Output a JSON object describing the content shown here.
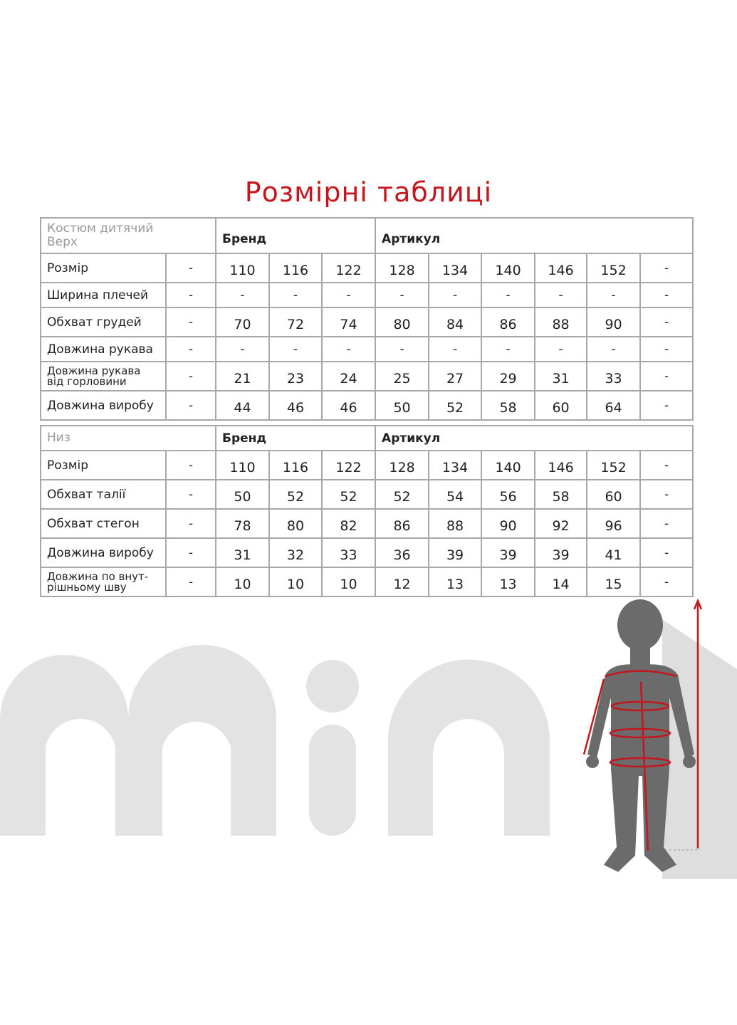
{
  "title": "Розмірні таблиці",
  "tables": [
    {
      "name_line1": "Костюм дитячий",
      "name_line2": "Верх",
      "brand_label": "Бренд",
      "article_label": "Артикул",
      "rows": [
        {
          "label": "Розмір",
          "values": [
            "-",
            "110",
            "116",
            "122",
            "128",
            "134",
            "140",
            "146",
            "152",
            "-"
          ]
        },
        {
          "label": "Ширина плечей",
          "values": [
            "-",
            "-",
            "-",
            "-",
            "-",
            "-",
            "-",
            "-",
            "-",
            "-"
          ]
        },
        {
          "label": "Обхват грудей",
          "values": [
            "-",
            "70",
            "72",
            "74",
            "80",
            "84",
            "86",
            "88",
            "90",
            "-"
          ]
        },
        {
          "label": "Довжина рукава",
          "values": [
            "-",
            "-",
            "-",
            "-",
            "-",
            "-",
            "-",
            "-",
            "-",
            "-"
          ]
        },
        {
          "label": "Довжина рукава від горловини",
          "label_line1": "Довжина рукава",
          "label_line2": "від горловини",
          "values": [
            "-",
            "21",
            "23",
            "24",
            "25",
            "27",
            "29",
            "31",
            "33",
            "-"
          ]
        },
        {
          "label": "Довжина виробу",
          "values": [
            "-",
            "44",
            "46",
            "46",
            "50",
            "52",
            "58",
            "60",
            "64",
            "-"
          ]
        }
      ]
    },
    {
      "name_line1": "Низ",
      "brand_label": "Бренд",
      "article_label": "Артикул",
      "rows": [
        {
          "label": "Розмір",
          "values": [
            "-",
            "110",
            "116",
            "122",
            "128",
            "134",
            "140",
            "146",
            "152",
            "-"
          ]
        },
        {
          "label": "Обхват талії",
          "values": [
            "-",
            "50",
            "52",
            "52",
            "52",
            "54",
            "56",
            "58",
            "60",
            "-"
          ]
        },
        {
          "label": "Обхват стегон",
          "values": [
            "-",
            "78",
            "80",
            "82",
            "86",
            "88",
            "90",
            "92",
            "96",
            "-"
          ]
        },
        {
          "label": "Довжина виробу",
          "values": [
            "-",
            "31",
            "32",
            "33",
            "36",
            "39",
            "39",
            "39",
            "41",
            "-"
          ]
        },
        {
          "label": "Довжина по внутрішньому шву",
          "label_line1": "Довжина по внут-",
          "label_line2": "рішньому шву",
          "values": [
            "-",
            "10",
            "10",
            "10",
            "12",
            "13",
            "13",
            "14",
            "15",
            "-"
          ]
        }
      ]
    }
  ],
  "logo": "mini",
  "colors": {
    "accent": "#c4161c",
    "border": "#a8a8a8",
    "logo": "#e3e3e3",
    "figure": "#6b6b6b"
  }
}
